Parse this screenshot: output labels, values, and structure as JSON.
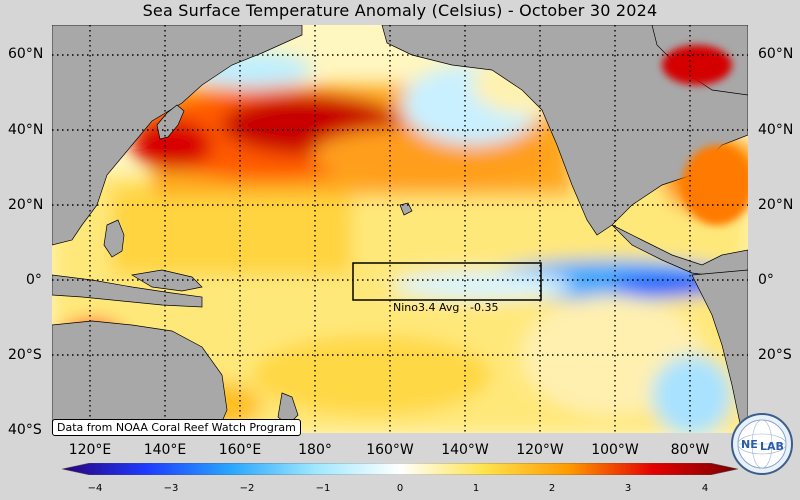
{
  "title": "Sea Surface Temperature Anomaly (Celsius) - October 30 2024",
  "lat_labels": {
    "left": [
      "60°N",
      "40°N",
      "20°N",
      "0°",
      "20°S",
      "40°S"
    ],
    "right": [
      "60°N",
      "40°N",
      "20°N",
      "0°",
      "20°S"
    ]
  },
  "lon_labels": [
    "120°E",
    "140°E",
    "160°E",
    "180°",
    "160°W",
    "140°W",
    "120°W",
    "100°W",
    "80°W"
  ],
  "region": {
    "label": "Nino3.4 Avg : -0.35",
    "lon_range": [
      "170°W",
      "120°W"
    ],
    "lat_range": [
      "5°S",
      "5°N"
    ],
    "average": -0.35
  },
  "credit": "Data from NOAA Coral Reef Watch Program",
  "colorbar": {
    "ticks": [
      "−4",
      "−3",
      "−2",
      "−1",
      "0",
      "1",
      "2",
      "3",
      "4"
    ],
    "range": [
      -4,
      4
    ],
    "colors": [
      "#2a0079",
      "#1d3cff",
      "#2aa6ff",
      "#9fe8ff",
      "#ffffff",
      "#ffe34d",
      "#ff9a00",
      "#e30000",
      "#7a0000"
    ]
  },
  "logo": {
    "text": "NE",
    "text2": "LAB"
  },
  "colors": {
    "land": "#a8a8a8",
    "coast": "#000000",
    "background": "#d6d6d6"
  }
}
